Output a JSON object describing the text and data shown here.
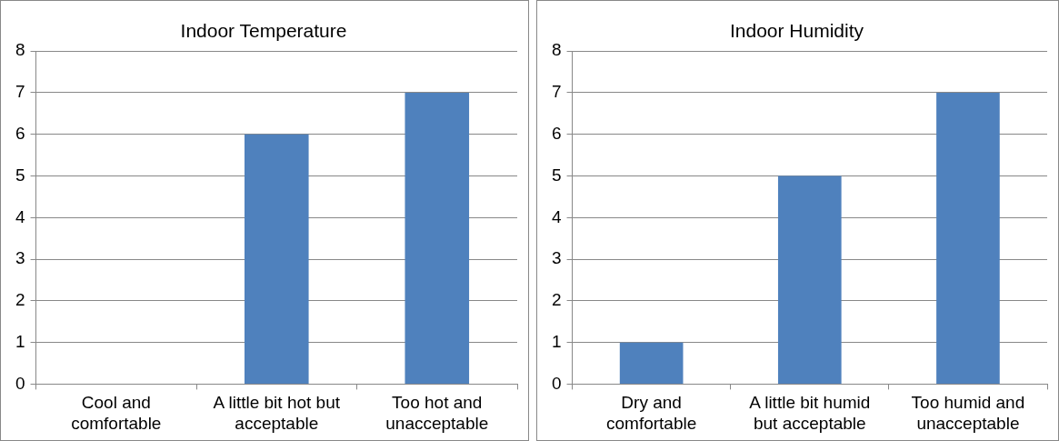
{
  "chart_data": [
    {
      "type": "bar",
      "title": "Indoor Temperature",
      "categories": [
        "Cool and comfortable",
        "A little bit hot but acceptable",
        "Too hot and unacceptable"
      ],
      "values": [
        0,
        6,
        7
      ],
      "color": "#4f81bd",
      "ylim": [
        0,
        8
      ],
      "yticks": [
        0,
        1,
        2,
        3,
        4,
        5,
        6,
        7,
        8
      ],
      "grid": "y",
      "legend": false
    },
    {
      "type": "bar",
      "title": "Indoor Humidity",
      "categories": [
        "Dry and comfortable",
        "A little bit humid but acceptable",
        "Too humid and unacceptable"
      ],
      "values": [
        1,
        5,
        7
      ],
      "color": "#4f81bd",
      "ylim": [
        0,
        8
      ],
      "yticks": [
        0,
        1,
        2,
        3,
        4,
        5,
        6,
        7,
        8
      ],
      "grid": "y",
      "legend": false
    }
  ]
}
